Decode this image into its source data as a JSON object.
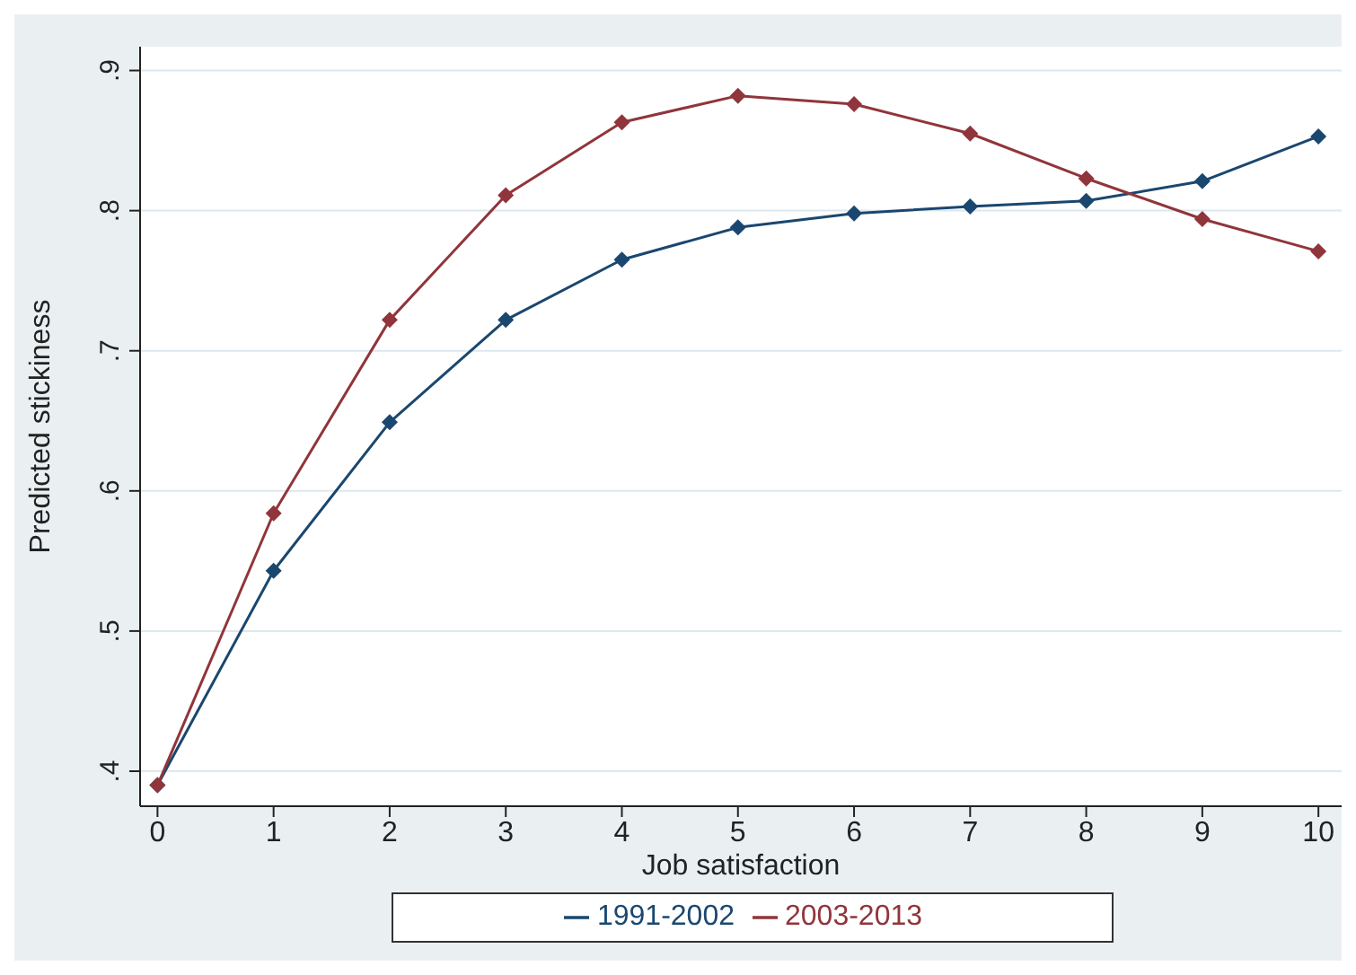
{
  "chart_data": {
    "type": "line",
    "xlabel": "Job satisfaction",
    "ylabel": "Predicted stickiness",
    "x": [
      0,
      1,
      2,
      3,
      4,
      5,
      6,
      7,
      8,
      9,
      10
    ],
    "series": [
      {
        "name": "1991-2002",
        "color": "#1a476f",
        "values": [
          0.39,
          0.543,
          0.649,
          0.722,
          0.765,
          0.788,
          0.798,
          0.803,
          0.807,
          0.821,
          0.853
        ]
      },
      {
        "name": "2003-2013",
        "color": "#90353b",
        "values": [
          0.39,
          0.584,
          0.722,
          0.811,
          0.863,
          0.882,
          0.876,
          0.855,
          0.823,
          0.794,
          0.771
        ]
      }
    ],
    "xlim": [
      -0.15,
      10.2
    ],
    "xticks": [
      0,
      1,
      2,
      3,
      4,
      5,
      6,
      7,
      8,
      9,
      10
    ],
    "ylim": [
      0.375,
      0.917
    ],
    "yticks": [
      {
        "value": 0.4,
        "label": ".4"
      },
      {
        "value": 0.5,
        "label": ".5"
      },
      {
        "value": 0.6,
        "label": ".6"
      },
      {
        "value": 0.7,
        "label": ".7"
      },
      {
        "value": 0.8,
        "label": ".8"
      },
      {
        "value": 0.9,
        "label": ".9"
      }
    ],
    "grid": "y",
    "legend": "bottom",
    "marker": "diamond",
    "line_style": "solid"
  }
}
